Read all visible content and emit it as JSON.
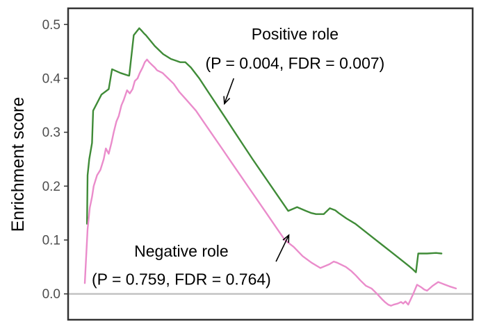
{
  "chart_data": {
    "type": "line",
    "ylabel": "Enrichment score",
    "xlabel": "",
    "ylim": [
      -0.048,
      0.53
    ],
    "yticks": [
      {
        "value": 0.0,
        "label": "0.0"
      },
      {
        "value": 0.1,
        "label": "0.1"
      },
      {
        "value": 0.2,
        "label": "0.2"
      },
      {
        "value": 0.3,
        "label": "0.3"
      },
      {
        "value": 0.4,
        "label": "0.4"
      },
      {
        "value": 0.5,
        "label": "0.5"
      }
    ],
    "xlim": [
      0,
      100
    ],
    "grid": false,
    "baseline": 0,
    "series": [
      {
        "color": "#3f8b37",
        "x": [
          4.87,
          5.01,
          5.45,
          6.16,
          6.45,
          8.6,
          10.46,
          11.32,
          13.47,
          15.62,
          15.76,
          16.91,
          18.34,
          18.77,
          19.63,
          20.06,
          22.35,
          24.5,
          26.5,
          28.94,
          30.23,
          31.66,
          33.81,
          36.1,
          38.4,
          40.69,
          42.98,
          45.27,
          47.56,
          49.85,
          52.15,
          54.44,
          56.73,
          59.03,
          61.32,
          62.75,
          63.9,
          65.9,
          67.48,
          68.91,
          69.77,
          71.78,
          74.07,
          76.36,
          78.65,
          80.95,
          83.24,
          85.53,
          87.82,
          88.82,
          89.68,
          90.26,
          92.55,
          94.84,
          96.27
        ],
        "y": [
          0.13,
          0.22,
          0.25,
          0.28,
          0.34,
          0.37,
          0.38,
          0.417,
          0.41,
          0.405,
          0.405,
          0.48,
          0.493,
          0.49,
          0.483,
          0.48,
          0.46,
          0.445,
          0.436,
          0.43,
          0.43,
          0.42,
          0.4,
          0.375,
          0.35,
          0.325,
          0.3,
          0.275,
          0.25,
          0.226,
          0.202,
          0.178,
          0.154,
          0.161,
          0.154,
          0.15,
          0.148,
          0.148,
          0.159,
          0.155,
          0.15,
          0.14,
          0.13,
          0.117,
          0.104,
          0.091,
          0.078,
          0.065,
          0.052,
          0.046,
          0.04,
          0.075,
          0.075,
          0.076,
          0.075
        ]
      },
      {
        "color": "#ea8ccb",
        "x": [
          4.3,
          5.01,
          5.59,
          6.16,
          6.59,
          7.45,
          8.31,
          9.17,
          9.74,
          10.46,
          11.17,
          11.75,
          12.46,
          13.04,
          13.75,
          14.33,
          15.19,
          15.9,
          16.62,
          17.19,
          17.91,
          18.48,
          19.2,
          19.77,
          20.34,
          20.92,
          21.63,
          22.35,
          22.92,
          24.36,
          25.79,
          27.22,
          28.65,
          30.52,
          32.95,
          35.24,
          37.54,
          39.83,
          42.12,
          44.41,
          46.7,
          49.0,
          51.29,
          53.58,
          55.87,
          58.17,
          60.46,
          62.75,
          65.04,
          67.34,
          68.48,
          69.34,
          71.63,
          73.07,
          74.21,
          75.36,
          76.79,
          78.22,
          79.66,
          80.95,
          81.66,
          82.52,
          83.24,
          83.95,
          84.96,
          85.82,
          86.39,
          86.96,
          87.68,
          88.97,
          89.97,
          91.12,
          91.83,
          92.55,
          93.98,
          95.42,
          96.85,
          98.28,
          100.0
        ],
        "y": [
          0.02,
          0.12,
          0.16,
          0.18,
          0.2,
          0.22,
          0.23,
          0.25,
          0.27,
          0.26,
          0.28,
          0.3,
          0.32,
          0.33,
          0.35,
          0.36,
          0.378,
          0.372,
          0.38,
          0.395,
          0.4,
          0.41,
          0.42,
          0.43,
          0.435,
          0.43,
          0.425,
          0.42,
          0.415,
          0.41,
          0.4,
          0.39,
          0.375,
          0.36,
          0.34,
          0.316,
          0.292,
          0.268,
          0.244,
          0.22,
          0.196,
          0.172,
          0.148,
          0.124,
          0.1,
          0.087,
          0.07,
          0.058,
          0.048,
          0.055,
          0.06,
          0.058,
          0.05,
          0.042,
          0.034,
          0.025,
          0.015,
          0.01,
          0.0,
          -0.01,
          -0.015,
          -0.02,
          -0.022,
          -0.02,
          -0.018,
          -0.015,
          -0.018,
          -0.014,
          -0.02,
          0.0,
          0.017,
          0.012,
          0.008,
          0.006,
          0.015,
          0.022,
          0.018,
          0.014,
          0.01
        ]
      }
    ],
    "annotations": [
      {
        "text": "Positive role",
        "x": 58.5,
        "y": 0.472
      },
      {
        "text": "(P = 0.004, FDR = 0.007)",
        "x": 58.5,
        "y": 0.418
      },
      {
        "text": "Negative role",
        "x": 29.2,
        "y": 0.069
      },
      {
        "text": "(P = 0.759, FDR = 0.764)",
        "x": 29.2,
        "y": 0.017
      }
    ],
    "arrows": [
      {
        "from": [
          42.7,
          0.4
        ],
        "to": [
          40.3,
          0.353
        ]
      },
      {
        "from": [
          53.6,
          0.06
        ],
        "to": [
          56.9,
          0.109
        ]
      }
    ]
  },
  "colors": {
    "axis_frame": "#333333",
    "baseline": "#bebebe",
    "positive_line": "#3f8b37",
    "negative_line": "#ea8ccb"
  }
}
